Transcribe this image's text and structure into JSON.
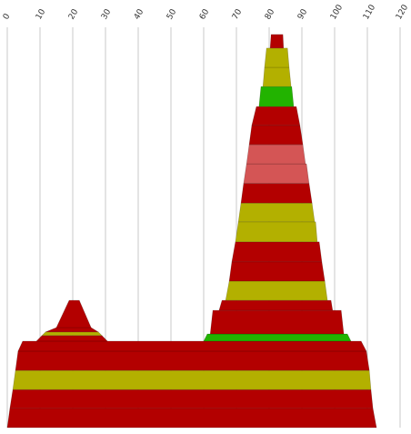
{
  "chart_data": {
    "type": "profile",
    "xlim": [
      0,
      120
    ],
    "xticks": [
      0,
      10,
      20,
      30,
      40,
      50,
      60,
      70,
      80,
      90,
      100,
      110,
      120
    ],
    "ylim": [
      0,
      100
    ],
    "grid": true,
    "bands": [
      {
        "color": "#b30000",
        "y": [
          0,
          4.8
        ],
        "bottom": [
          0,
          112.8
        ],
        "top": [
          0.8,
          111.7
        ]
      },
      {
        "color": "#b30000",
        "y": [
          4.8,
          9.5
        ],
        "bottom": [
          0.8,
          111.7
        ],
        "top": [
          1.7,
          111.1
        ]
      },
      {
        "color": "#b3b000",
        "y": [
          9.5,
          14.3
        ],
        "bottom": [
          1.7,
          111.1
        ],
        "top": [
          2.5,
          110.6
        ]
      },
      {
        "color": "#b30000",
        "y": [
          14.3,
          19.1
        ],
        "bottom": [
          2.5,
          110.6
        ],
        "top": [
          3.3,
          109.7
        ]
      },
      {
        "color": "#b30000",
        "y": [
          19.1,
          21.6
        ],
        "bottom": [
          3.3,
          109.7
        ],
        "top": [
          4.7,
          108.1
        ]
      },
      {
        "color": "#b30000",
        "y": [
          21.6,
          23.0
        ],
        "bottom": [
          8.9,
          30.6
        ],
        "top": [
          10.6,
          28.9
        ]
      },
      {
        "color": "#b3b000",
        "y": [
          23.0,
          23.9
        ],
        "bottom": [
          10.6,
          28.9
        ],
        "top": [
          11.7,
          27.8
        ]
      },
      {
        "color": "#b30000",
        "y": [
          23.9,
          25.0
        ],
        "bottom": [
          11.7,
          27.8
        ],
        "top": [
          15.0,
          25.6
        ]
      },
      {
        "color": "#b30000",
        "y": [
          25.0,
          31.8
        ],
        "bottom": [
          15.0,
          25.6
        ],
        "top": [
          18.9,
          22.0
        ]
      },
      {
        "color": "#22b300",
        "y": [
          21.6,
          23.4
        ],
        "bottom": [
          60,
          105
        ],
        "top": [
          61.1,
          103.9
        ]
      },
      {
        "color": "#b30000",
        "y": [
          23.4,
          29.3
        ],
        "bottom": [
          62,
          102.8
        ],
        "top": [
          62.8,
          102
        ]
      },
      {
        "color": "#b30000",
        "y": [
          29.3,
          31.8
        ],
        "bottom": [
          64.7,
          99.4
        ],
        "top": [
          65.6,
          98.9
        ]
      },
      {
        "color": "#b3b000",
        "y": [
          31.8,
          36.6
        ],
        "bottom": [
          66.7,
          97.8
        ],
        "top": [
          67.8,
          97
        ]
      },
      {
        "color": "#b30000",
        "y": [
          36.6,
          41.4
        ],
        "bottom": [
          67.8,
          97
        ],
        "top": [
          68.6,
          96.1
        ]
      },
      {
        "color": "#b30000",
        "y": [
          41.4,
          46.4
        ],
        "bottom": [
          68.6,
          96.1
        ],
        "top": [
          69.7,
          95.3
        ]
      },
      {
        "color": "#b3b000",
        "y": [
          46.4,
          51.4
        ],
        "bottom": [
          69.7,
          94.7
        ],
        "top": [
          70.6,
          94.2
        ]
      },
      {
        "color": "#b3b000",
        "y": [
          51.4,
          56.1
        ],
        "bottom": [
          70.6,
          93.9
        ],
        "top": [
          71.4,
          93.1
        ]
      },
      {
        "color": "#b30000",
        "y": [
          56.1,
          61.0
        ],
        "bottom": [
          71.4,
          93.1
        ],
        "top": [
          72.2,
          92.2
        ]
      },
      {
        "color": "#d45555",
        "y": [
          61.0,
          65.9
        ],
        "bottom": [
          72.2,
          92.2
        ],
        "top": [
          73.1,
          91.4
        ]
      },
      {
        "color": "#d45555",
        "y": [
          65.9,
          70.7
        ],
        "bottom": [
          73.1,
          91.1
        ],
        "top": [
          73.9,
          90.3
        ]
      },
      {
        "color": "#b30000",
        "y": [
          70.7,
          75.5
        ],
        "bottom": [
          73.9,
          90.3
        ],
        "top": [
          74.7,
          89.4
        ]
      },
      {
        "color": "#b30000",
        "y": [
          75.5,
          80.2
        ],
        "bottom": [
          74.7,
          89.4
        ],
        "top": [
          76.1,
          88.3
        ]
      },
      {
        "color": "#22b300",
        "y": [
          80.2,
          85.2
        ],
        "bottom": [
          76.9,
          87.5
        ],
        "top": [
          77.5,
          86.9
        ]
      },
      {
        "color": "#b3b000",
        "y": [
          85.2,
          90.0
        ],
        "bottom": [
          78.1,
          86.7
        ],
        "top": [
          78.6,
          86.1
        ]
      },
      {
        "color": "#b3b000",
        "y": [
          90.0,
          94.8
        ],
        "bottom": [
          78.6,
          86.1
        ],
        "top": [
          79.2,
          85.6
        ]
      },
      {
        "color": "#b30000",
        "y": [
          94.8,
          98.2
        ],
        "bottom": [
          80.3,
          84.4
        ],
        "top": [
          80.6,
          84.2
        ]
      }
    ]
  }
}
